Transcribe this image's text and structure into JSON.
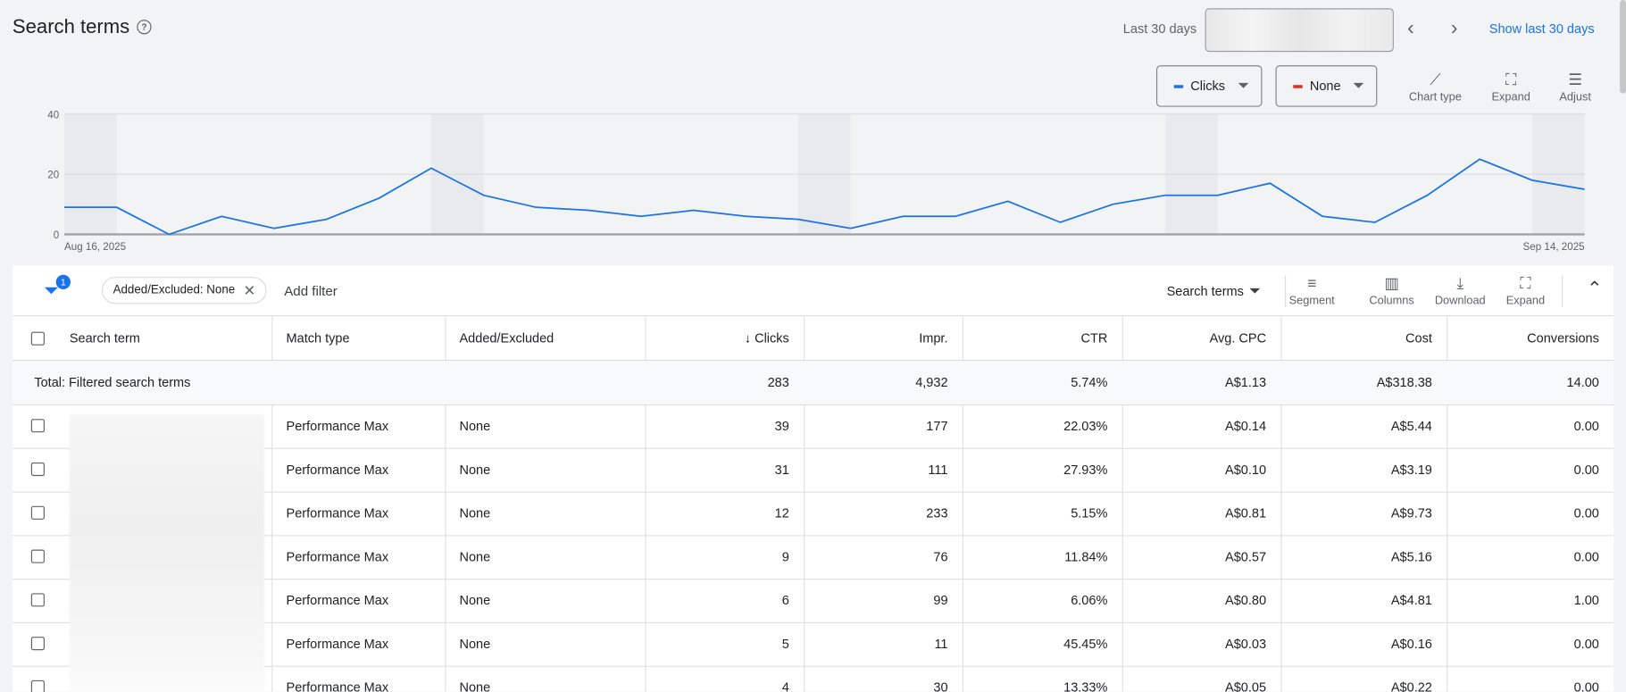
{
  "header": {
    "title": "Search terms",
    "date_label": "Last 30 days",
    "show_last_link": "Show last 30 days"
  },
  "chart_controls": {
    "metric1": "Clicks",
    "metric1_color": "#1a73e8",
    "metric2": "None",
    "metric2_color": "#d93025",
    "chart_type": "Chart type",
    "expand": "Expand",
    "adjust": "Adjust"
  },
  "chart_data": {
    "type": "line",
    "x_start_label": "Aug 16, 2025",
    "x_end_label": "Sep 14, 2025",
    "x": [
      "Aug 16",
      "Aug 17",
      "Aug 18",
      "Aug 19",
      "Aug 20",
      "Aug 21",
      "Aug 22",
      "Aug 23",
      "Aug 24",
      "Aug 25",
      "Aug 26",
      "Aug 27",
      "Aug 28",
      "Aug 29",
      "Aug 30",
      "Aug 31",
      "Sep 1",
      "Sep 2",
      "Sep 3",
      "Sep 4",
      "Sep 5",
      "Sep 6",
      "Sep 7",
      "Sep 8",
      "Sep 9",
      "Sep 10",
      "Sep 11",
      "Sep 12",
      "Sep 13",
      "Sep 14"
    ],
    "series": [
      {
        "name": "Clicks",
        "color": "#1a73e8",
        "values": [
          9,
          9,
          0,
          6,
          2,
          5,
          12,
          22,
          13,
          9,
          8,
          6,
          8,
          6,
          5,
          2,
          6,
          6,
          11,
          4,
          10,
          13,
          13,
          17,
          6,
          4,
          13,
          25,
          18,
          15
        ]
      }
    ],
    "ylim": [
      0,
      40
    ],
    "yticks": [
      "0",
      "20",
      "40"
    ],
    "grid": true,
    "weekend_bands": [
      [
        "Aug 16",
        "Aug 17"
      ],
      [
        "Aug 23",
        "Aug 24"
      ],
      [
        "Aug 30",
        "Aug 31"
      ],
      [
        "Sep 6",
        "Sep 7"
      ],
      [
        "Sep 13",
        "Sep 14"
      ]
    ]
  },
  "toolbar": {
    "filter_count": "1",
    "filter_chip": "Added/Excluded: None",
    "add_filter": "Add filter",
    "view_select": "Search terms",
    "segment": "Segment",
    "columns": "Columns",
    "download": "Download",
    "expand": "Expand"
  },
  "table": {
    "columns": [
      "Search term",
      "Match type",
      "Added/Excluded",
      "Clicks",
      "Impr.",
      "CTR",
      "Avg. CPC",
      "Cost",
      "Conversions"
    ],
    "total": {
      "label": "Total: Filtered search terms",
      "clicks": "283",
      "impr": "4,932",
      "ctr": "5.74%",
      "cpc": "A$1.13",
      "cost": "A$318.38",
      "conv": "14.00"
    },
    "rows": [
      {
        "match": "Performance Max",
        "added": "None",
        "clicks": "39",
        "impr": "177",
        "ctr": "22.03%",
        "cpc": "A$0.14",
        "cost": "A$5.44",
        "conv": "0.00"
      },
      {
        "match": "Performance Max",
        "added": "None",
        "clicks": "31",
        "impr": "111",
        "ctr": "27.93%",
        "cpc": "A$0.10",
        "cost": "A$3.19",
        "conv": "0.00"
      },
      {
        "match": "Performance Max",
        "added": "None",
        "clicks": "12",
        "impr": "233",
        "ctr": "5.15%",
        "cpc": "A$0.81",
        "cost": "A$9.73",
        "conv": "0.00"
      },
      {
        "match": "Performance Max",
        "added": "None",
        "clicks": "9",
        "impr": "76",
        "ctr": "11.84%",
        "cpc": "A$0.57",
        "cost": "A$5.16",
        "conv": "0.00"
      },
      {
        "match": "Performance Max",
        "added": "None",
        "clicks": "6",
        "impr": "99",
        "ctr": "6.06%",
        "cpc": "A$0.80",
        "cost": "A$4.81",
        "conv": "1.00"
      },
      {
        "match": "Performance Max",
        "added": "None",
        "clicks": "5",
        "impr": "11",
        "ctr": "45.45%",
        "cpc": "A$0.03",
        "cost": "A$0.16",
        "conv": "0.00"
      },
      {
        "match": "Performance Max",
        "added": "None",
        "clicks": "4",
        "impr": "30",
        "ctr": "13.33%",
        "cpc": "A$0.05",
        "cost": "A$0.22",
        "conv": "0.00"
      }
    ]
  }
}
